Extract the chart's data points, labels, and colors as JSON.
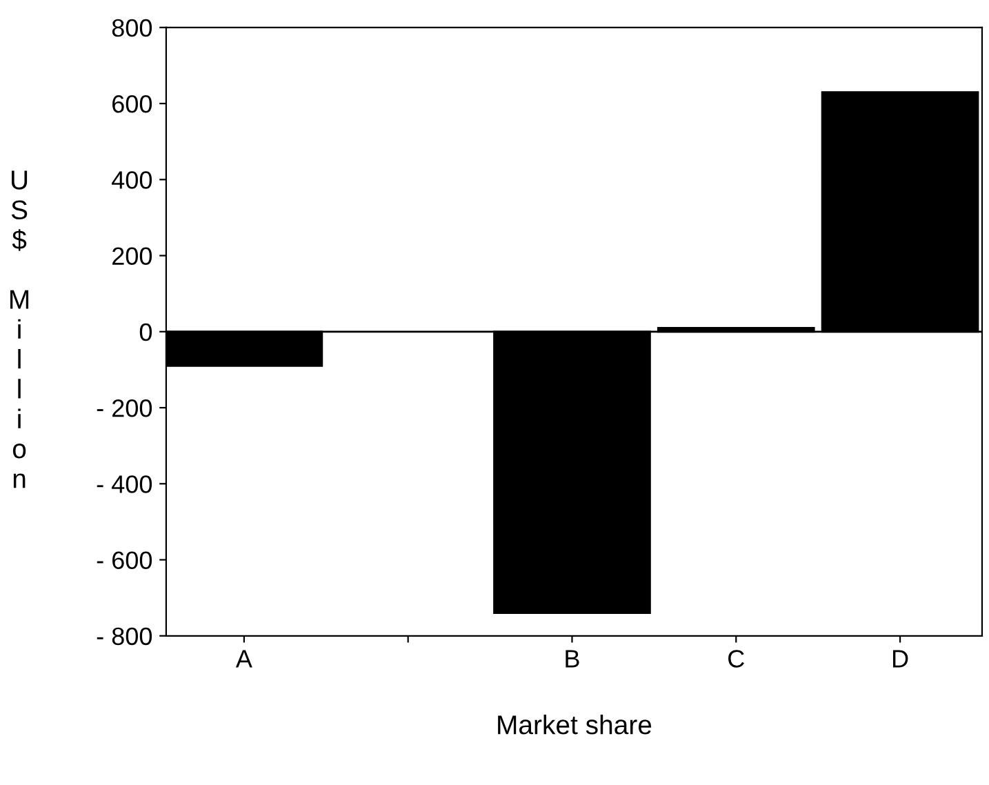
{
  "chart_data": {
    "type": "bar",
    "xlabel": "Market share",
    "ylabel": "US$ Million",
    "categories": [
      "A",
      null,
      "B",
      "C",
      "D"
    ],
    "values": [
      -90,
      null,
      -740,
      10,
      630
    ],
    "color": "#000000",
    "ylim": [
      -800,
      800
    ],
    "yticks": [
      {
        "value": -800,
        "label": "- 800"
      },
      {
        "value": -600,
        "label": "- 600"
      },
      {
        "value": -400,
        "label": "- 400"
      },
      {
        "value": -200,
        "label": "- 200"
      },
      0,
      200,
      400,
      600,
      800
    ],
    "ref_lines": [
      {
        "axis": "y",
        "value": 0,
        "color": "#000000"
      }
    ],
    "grid": false
  }
}
